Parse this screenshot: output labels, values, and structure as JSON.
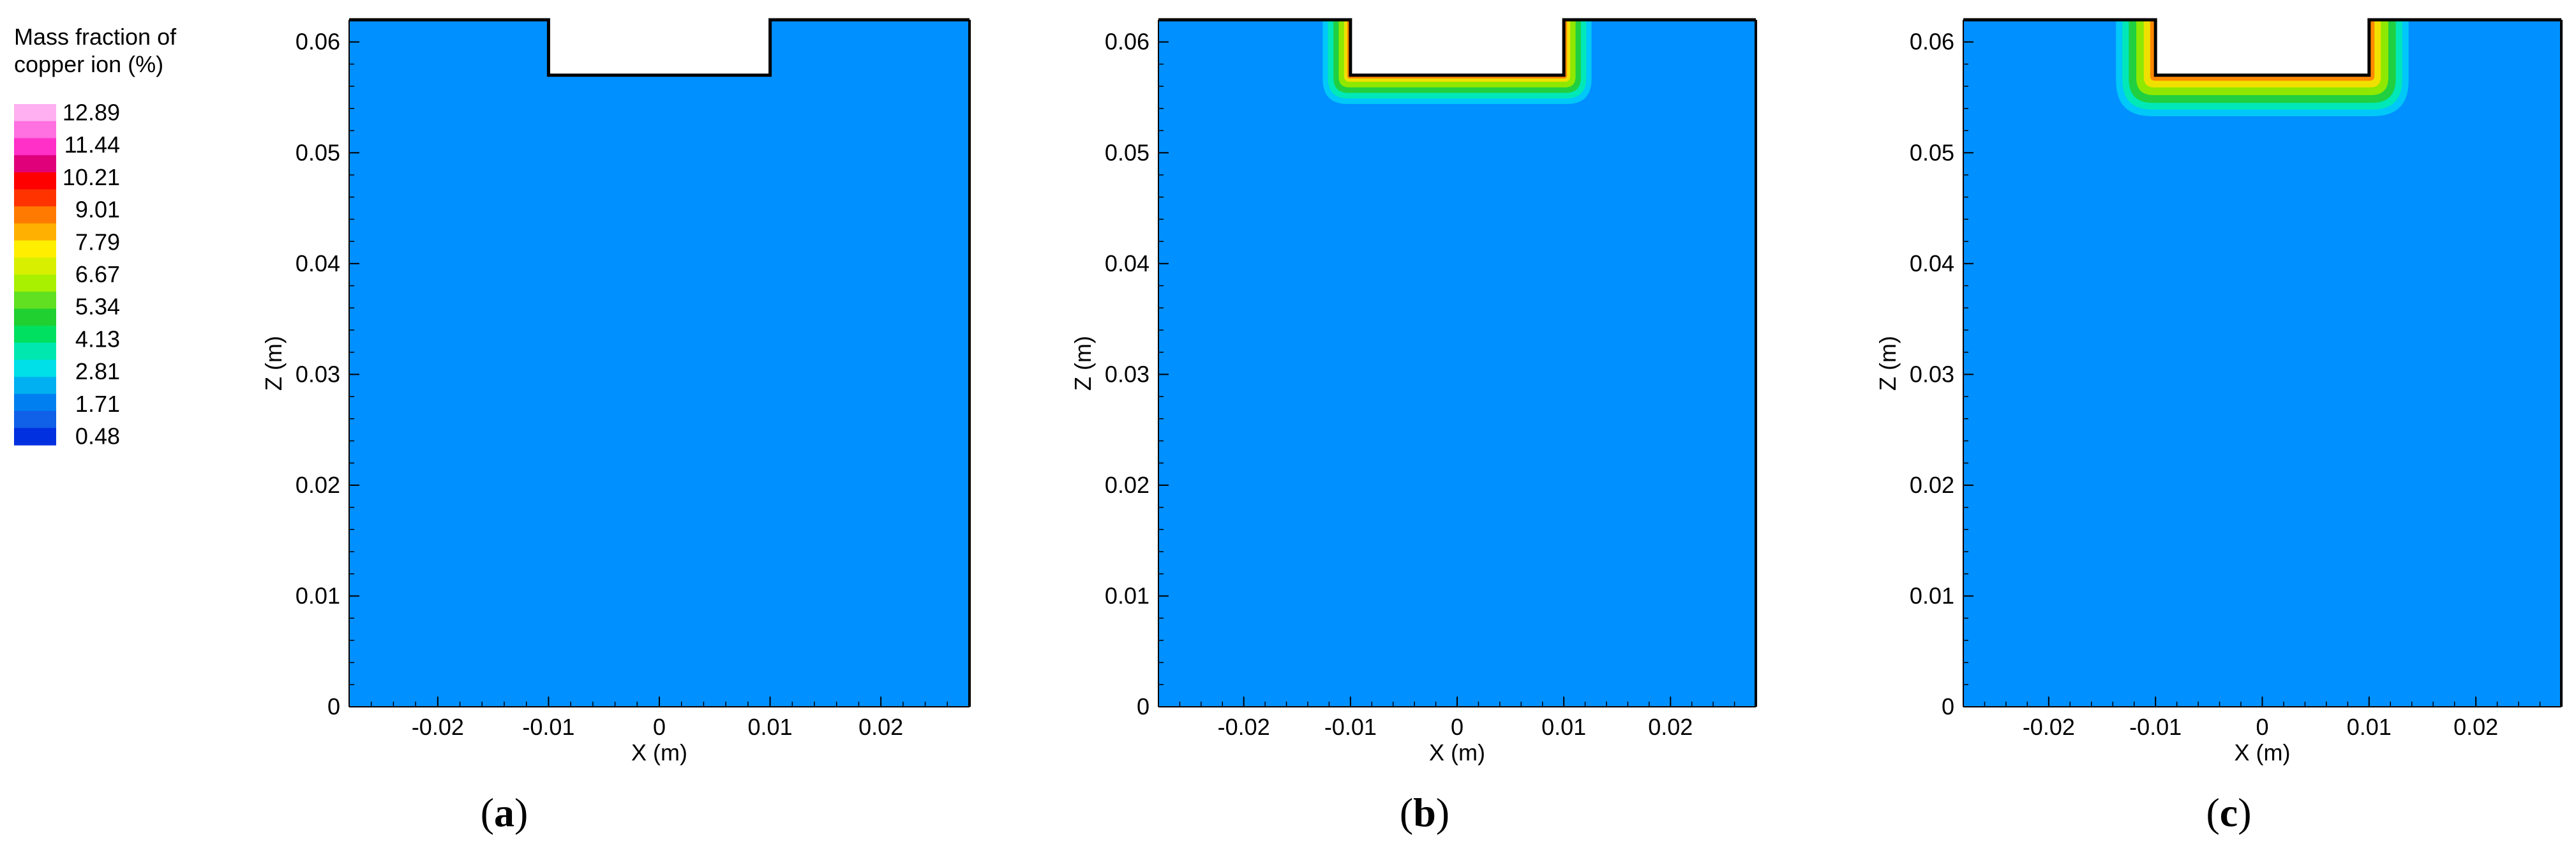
{
  "chart_data": {
    "type": "heatmap",
    "legend": {
      "title_lines": [
        "Mass fraction of",
        "copper ion (%)"
      ],
      "levels": [
        "12.89",
        "11.44",
        "10.21",
        "9.01",
        "7.79",
        "6.67",
        "5.34",
        "4.13",
        "2.81",
        "1.71",
        "0.48"
      ],
      "colors": [
        "#ffb0f0",
        "#ff70e0",
        "#ff30c8",
        "#e0007a",
        "#ff0000",
        "#ff3300",
        "#ff7a00",
        "#ffb000",
        "#ffee00",
        "#d8f000",
        "#a8f000",
        "#60e020",
        "#20d030",
        "#00e060",
        "#00e8b0",
        "#00e0e8",
        "#00b0f0",
        "#0080f0",
        "#1060e8",
        "#0030e0"
      ]
    },
    "background_color": "#0090ff",
    "panels": [
      {
        "label": "a",
        "xlabel": "X (m)",
        "ylabel": "Z (m)",
        "xlim": [
          -0.028,
          0.028
        ],
        "ylim": [
          0,
          0.062
        ],
        "xticks": [
          "-0.02",
          "-0.01",
          "0",
          "0.01",
          "0.02"
        ],
        "xtick_values": [
          -0.02,
          -0.01,
          0,
          0.01,
          0.02
        ],
        "yticks": [
          "0",
          "0.01",
          "0.02",
          "0.03",
          "0.04",
          "0.05",
          "0.06"
        ],
        "ytick_values": [
          0,
          0.01,
          0.02,
          0.03,
          0.04,
          0.05,
          0.06
        ],
        "notch": {
          "x": [
            -0.01,
            0.01
          ],
          "z_top": 0.062,
          "z_bottom": 0.057
        },
        "concentration_bands": []
      },
      {
        "label": "b",
        "xlabel": "X (m)",
        "ylabel": "Z (m)",
        "xlim": [
          -0.028,
          0.028
        ],
        "ylim": [
          0,
          0.062
        ],
        "xticks": [
          "-0.02",
          "-0.01",
          "0",
          "0.01",
          "0.02"
        ],
        "xtick_values": [
          -0.02,
          -0.01,
          0,
          0.01,
          0.02
        ],
        "yticks": [
          "0",
          "0.01",
          "0.02",
          "0.03",
          "0.04",
          "0.05",
          "0.06"
        ],
        "ytick_values": [
          0,
          0.01,
          0.02,
          0.03,
          0.04,
          0.05,
          0.06
        ],
        "notch": {
          "x": [
            -0.01,
            0.01
          ],
          "z_top": 0.062,
          "z_bottom": 0.057
        },
        "concentration_bands": [
          {
            "thickness": 0.0026,
            "color": "#00c8f8"
          },
          {
            "thickness": 0.0021,
            "color": "#00e8b8"
          },
          {
            "thickness": 0.0016,
            "color": "#20d040"
          },
          {
            "thickness": 0.0011,
            "color": "#8ee800"
          },
          {
            "thickness": 0.0006,
            "color": "#f0e000"
          },
          {
            "thickness": 0.0003,
            "color": "#ff8800"
          }
        ]
      },
      {
        "label": "c",
        "xlabel": "X (m)",
        "ylabel": "Z (m)",
        "xlim": [
          -0.028,
          0.028
        ],
        "ylim": [
          0,
          0.062
        ],
        "xticks": [
          "-0.02",
          "-0.01",
          "0",
          "0.01",
          "0.02"
        ],
        "xtick_values": [
          -0.02,
          -0.01,
          0,
          0.01,
          0.02
        ],
        "yticks": [
          "0",
          "0.01",
          "0.02",
          "0.03",
          "0.04",
          "0.05",
          "0.06"
        ],
        "ytick_values": [
          0,
          0.01,
          0.02,
          0.03,
          0.04,
          0.05,
          0.06
        ],
        "notch": {
          "x": [
            -0.01,
            0.01
          ],
          "z_top": 0.062,
          "z_bottom": 0.057
        },
        "concentration_bands": [
          {
            "thickness": 0.0037,
            "color": "#00c8f8"
          },
          {
            "thickness": 0.0031,
            "color": "#00e8b8"
          },
          {
            "thickness": 0.0025,
            "color": "#20d040"
          },
          {
            "thickness": 0.0018,
            "color": "#8ee800"
          },
          {
            "thickness": 0.0011,
            "color": "#f0e000"
          },
          {
            "thickness": 0.0005,
            "color": "#ff8800"
          }
        ]
      }
    ]
  }
}
